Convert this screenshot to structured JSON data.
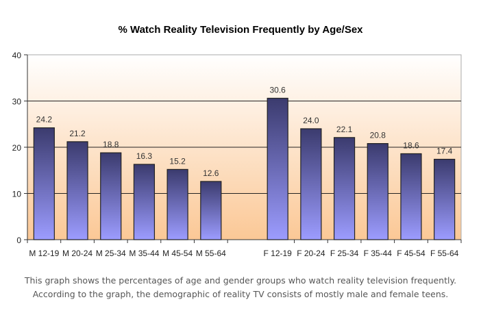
{
  "chart_data": {
    "type": "bar",
    "title": "% Watch Reality Television Frequently by Age/Sex",
    "xlabel": "",
    "ylabel": "",
    "ylim": [
      0,
      40
    ],
    "yticks": [
      0,
      10,
      20,
      30,
      40
    ],
    "grid": true,
    "categories": [
      "M 12-19",
      "M 20-24",
      "M 25-34",
      "M 35-44",
      "M 45-54",
      "M 55-64",
      "",
      "F 12-19",
      "F 20-24",
      "F 25-34",
      "F 35-44",
      "F 45-54",
      "F 55-64"
    ],
    "values": [
      24.2,
      21.2,
      18.8,
      16.3,
      15.2,
      12.6,
      null,
      30.6,
      24.0,
      22.1,
      20.8,
      18.6,
      17.4
    ],
    "data_labels": [
      "24.2",
      "21.2",
      "18.8",
      "16.3",
      "15.2",
      "12.6",
      "",
      "30.6",
      "24.0",
      "22.1",
      "20.8",
      "18.6",
      "17.4"
    ],
    "colors": {
      "bar_top": "#3b3b6e",
      "bar_bottom": "#9c9cff",
      "plot_top": "#ffffff",
      "plot_bottom": "#fbc896"
    }
  },
  "caption": {
    "line1": "This graph shows the percentages of age and gender groups who watch reality television frequently.",
    "line2": "According to the graph, the demographic of reality TV consists of mostly male and female teens."
  }
}
